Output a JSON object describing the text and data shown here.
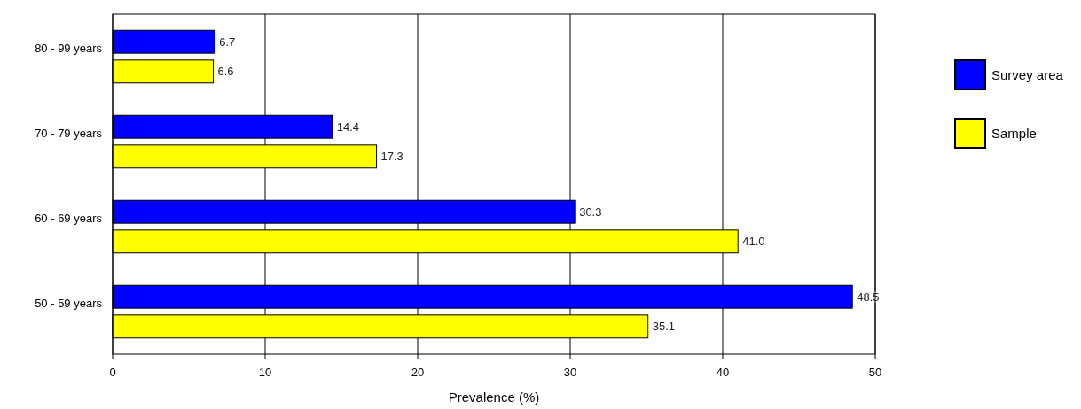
{
  "chart_data": {
    "type": "bar",
    "orientation": "horizontal",
    "xlabel": "Prevalence (%)",
    "categories": [
      "80 - 99 years",
      "70 - 79 years",
      "60 - 69 years",
      "50 - 59 years"
    ],
    "series": [
      {
        "name": "Survey area",
        "color": "#0000ff",
        "values": [
          6.7,
          14.4,
          30.3,
          48.5
        ]
      },
      {
        "name": "Sample",
        "color": "#ffff00",
        "values": [
          6.6,
          17.3,
          41.0,
          35.1
        ]
      }
    ],
    "value_labels": [
      [
        "6.7",
        "14.4",
        "30.3",
        "48.5"
      ],
      [
        "6.6",
        "17.3",
        "41.0",
        "35.1"
      ]
    ],
    "xlim": [
      0,
      50
    ],
    "xticks": [
      0,
      10,
      20,
      30,
      40,
      50
    ],
    "grid": "x",
    "legend": "right"
  }
}
